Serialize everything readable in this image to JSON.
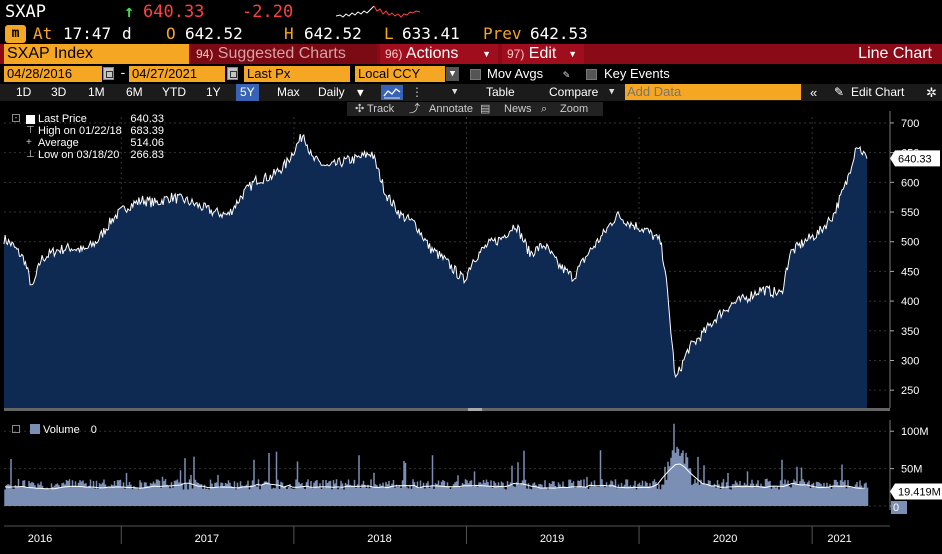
{
  "ticker": {
    "symbol": "SXAP",
    "last": "640.33",
    "change": "-2.20",
    "time_label": "At",
    "time": "17:47",
    "time_suffix": "d",
    "open_label": "O",
    "open": "642.52",
    "high_label": "H",
    "high": "642.52",
    "low_label": "L",
    "low": "633.41",
    "prev_label": "Prev",
    "prev": "642.53",
    "market_badge": "m",
    "colors": {
      "up": "#3ee04a",
      "down": "#ff4040",
      "accent": "#f5a623"
    }
  },
  "command_bar": {
    "index": "SXAP Index",
    "suggested_num": "94)",
    "suggested": "Suggested Charts",
    "actions_num": "96)",
    "actions": "Actions",
    "edit_num": "97)",
    "edit": "Edit",
    "view": "Line Chart"
  },
  "params": {
    "start_date": "04/28/2016",
    "end_date": "04/27/2021",
    "field": "Last Px",
    "currency": "Local CCY",
    "mov_avgs": "Mov Avgs",
    "key_events": "Key Events"
  },
  "periods": {
    "items": [
      "1D",
      "3D",
      "1M",
      "6M",
      "YTD",
      "1Y",
      "5Y",
      "Max"
    ],
    "active": "5Y",
    "frequency": "Daily",
    "table": "Table",
    "compare": "Compare",
    "add_data_placeholder": "Add Data",
    "edit_chart": "Edit Chart"
  },
  "tools": {
    "track": "Track",
    "annotate": "Annotate",
    "news": "News",
    "zoom": "Zoom"
  },
  "legend": {
    "last_price_label": "Last Price",
    "last_price": "640.33",
    "high_label": "High on 01/22/18",
    "high": "683.39",
    "average_label": "Average",
    "average": "514.06",
    "low_label": "Low on 03/18/20",
    "low": "266.83",
    "volume_label": "Volume",
    "volume": "0"
  },
  "chart_data": [
    {
      "type": "area",
      "title": "",
      "x_range": [
        "2016-04-28",
        "2021-04-27"
      ],
      "ylim": [
        220,
        710
      ],
      "y_ticks": [
        250,
        300,
        350,
        400,
        450,
        500,
        550,
        600,
        650,
        700
      ],
      "x_ticks": [
        "2016",
        "2017",
        "2018",
        "2019",
        "2020",
        "2021"
      ],
      "last_value_tag": "640.33",
      "grid": true,
      "series": [
        {
          "name": "Last Price",
          "color": "#ffffff",
          "fill": "#0e2a52",
          "x": [
            "2016-04-28",
            "2016-05-15",
            "2016-06-10",
            "2016-06-27",
            "2016-07-15",
            "2016-08-15",
            "2016-09-15",
            "2016-10-15",
            "2016-11-10",
            "2016-12-15",
            "2017-01-15",
            "2017-02-15",
            "2017-03-15",
            "2017-04-15",
            "2017-05-15",
            "2017-06-15",
            "2017-07-15",
            "2017-08-15",
            "2017-09-15",
            "2017-10-15",
            "2017-11-15",
            "2017-12-15",
            "2018-01-22",
            "2018-02-08",
            "2018-03-15",
            "2018-04-15",
            "2018-05-15",
            "2018-06-15",
            "2018-07-15",
            "2018-08-15",
            "2018-09-15",
            "2018-10-15",
            "2018-11-15",
            "2018-12-27",
            "2019-01-15",
            "2019-02-15",
            "2019-03-15",
            "2019-04-15",
            "2019-05-15",
            "2019-06-15",
            "2019-07-15",
            "2019-08-15",
            "2019-09-15",
            "2019-10-15",
            "2019-11-15",
            "2019-12-15",
            "2020-01-15",
            "2020-02-15",
            "2020-02-25",
            "2020-03-18",
            "2020-04-15",
            "2020-05-15",
            "2020-06-15",
            "2020-07-15",
            "2020-08-15",
            "2020-09-15",
            "2020-10-28",
            "2020-11-15",
            "2020-12-15",
            "2021-01-15",
            "2021-02-15",
            "2021-03-15",
            "2021-04-05",
            "2021-04-27"
          ],
          "values": [
            505,
            495,
            470,
            420,
            470,
            485,
            490,
            485,
            500,
            540,
            560,
            570,
            565,
            575,
            570,
            560,
            550,
            545,
            580,
            605,
            610,
            630,
            683,
            640,
            625,
            635,
            640,
            650,
            580,
            545,
            530,
            490,
            470,
            435,
            470,
            495,
            505,
            530,
            480,
            495,
            460,
            440,
            480,
            510,
            545,
            530,
            520,
            500,
            455,
            267,
            320,
            345,
            375,
            395,
            405,
            420,
            412,
            480,
            500,
            515,
            545,
            600,
            665,
            640
          ]
        }
      ]
    },
    {
      "type": "area",
      "title": "",
      "ylabel": "Volume",
      "ylim": [
        0,
        115
      ],
      "y_ticks_millions": [
        0,
        50,
        100
      ],
      "y_tick_labels": [
        "0",
        "50M",
        "100M"
      ],
      "last_value_tag": "19.419M",
      "series": [
        {
          "name": "Volume",
          "color": "#7b8fb5"
        }
      ]
    }
  ]
}
